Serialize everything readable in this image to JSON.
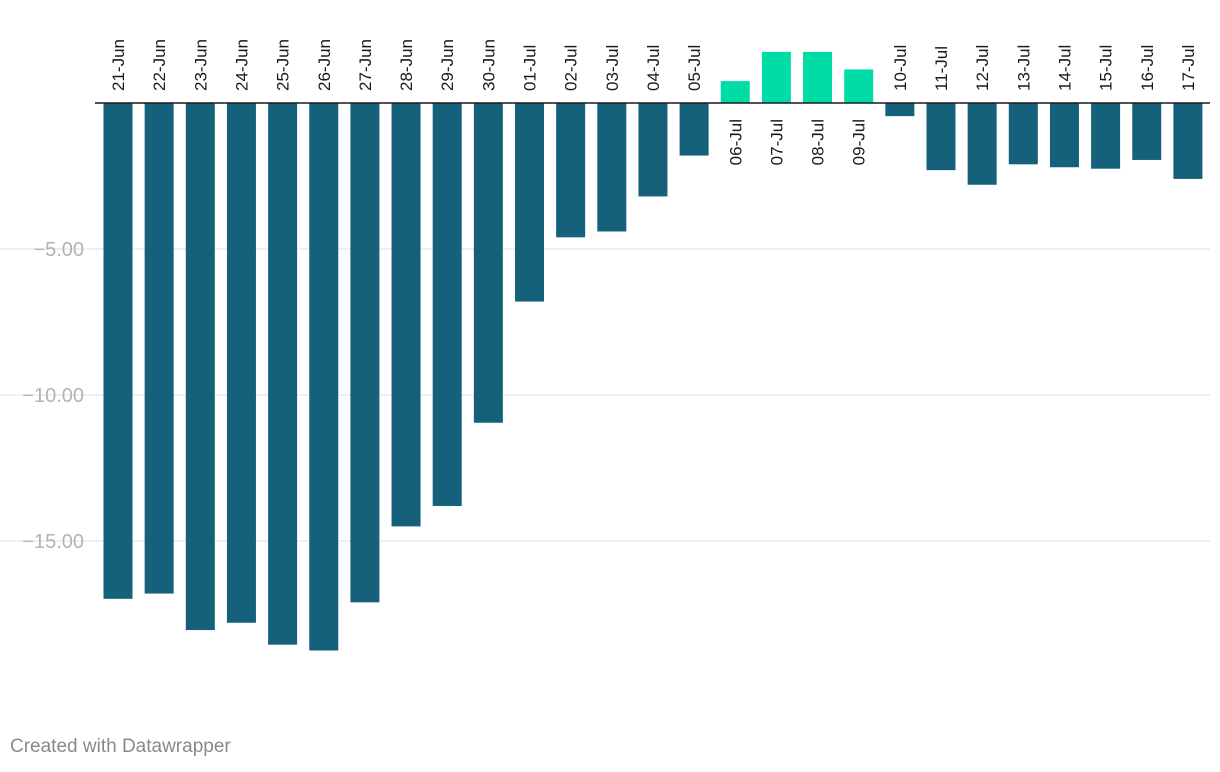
{
  "chart_data": {
    "type": "bar",
    "categories": [
      "21-Jun",
      "22-Jun",
      "23-Jun",
      "24-Jun",
      "25-Jun",
      "26-Jun",
      "27-Jun",
      "28-Jun",
      "29-Jun",
      "30-Jun",
      "01-Jul",
      "02-Jul",
      "03-Jul",
      "04-Jul",
      "05-Jul",
      "06-Jul",
      "07-Jul",
      "08-Jul",
      "09-Jul",
      "10-Jul",
      "11-Jul",
      "12-Jul",
      "13-Jul",
      "14-Jul",
      "15-Jul",
      "16-Jul",
      "17-Jul"
    ],
    "values": [
      -16.98,
      -16.8,
      -18.05,
      -17.8,
      -18.55,
      -18.75,
      -17.1,
      -14.5,
      -13.8,
      -10.95,
      -6.8,
      -4.6,
      -4.4,
      -3.2,
      -1.8,
      0.75,
      1.75,
      1.75,
      1.15,
      -0.45,
      -2.3,
      -2.8,
      -2.1,
      -2.2,
      -2.25,
      -1.95,
      -2.6
    ],
    "yticks": [
      -5,
      -10,
      -15
    ],
    "ytick_labels": [
      "−5.00",
      "−10.00",
      "−15.00"
    ],
    "ylim": [
      -20.5,
      2.6
    ],
    "colors": {
      "negative": "#15607a",
      "positive": "#00dca5"
    },
    "title": "",
    "xlabel": "",
    "ylabel": ""
  },
  "footer": {
    "credit": "Created with Datawrapper"
  }
}
